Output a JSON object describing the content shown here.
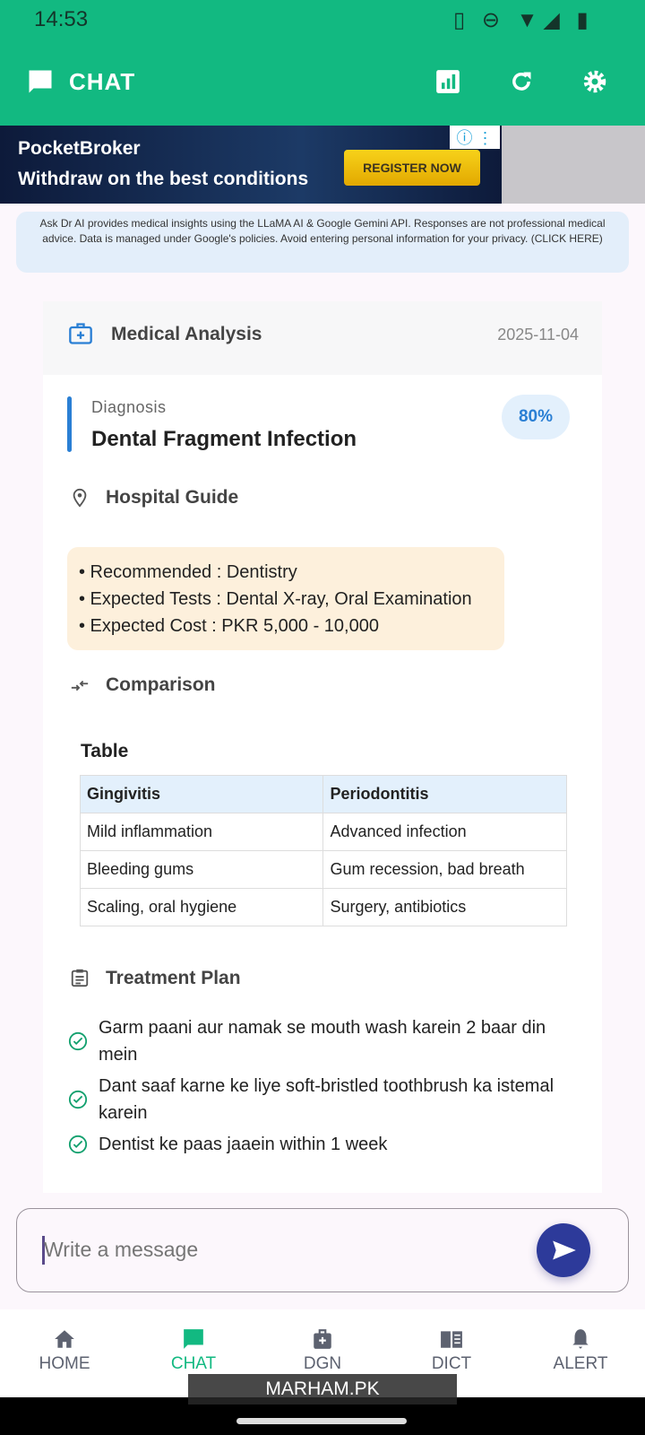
{
  "status_bar": {
    "time": "14:53"
  },
  "app_bar": {
    "title": "CHAT",
    "icons": [
      "chat-icon",
      "chart-icon",
      "refresh-icon",
      "settings-icon"
    ]
  },
  "ad": {
    "brand": "PocketBroker",
    "tagline": "Withdraw on the best conditions",
    "cta": "REGISTER NOW"
  },
  "disclaimer": "Ask Dr AI provides medical insights using the LLaMA AI & Google Gemini API. Responses are not professional medical advice. Data is managed under Google's policies. Avoid entering personal information for your privacy. (CLICK HERE)",
  "analysis": {
    "title": "Medical Analysis",
    "date": "2025-11-04",
    "diagnosis_label": "Diagnosis",
    "diagnosis": "Dental Fragment Infection",
    "confidence": "80%",
    "hospital_title": "Hospital Guide",
    "hospital_items": [
      "• Recommended : Dentistry",
      "• Expected Tests : Dental X-ray, Oral Examination",
      "• Expected Cost : PKR 5,000 - 10,000"
    ],
    "comparison_title": "Comparison",
    "table_title": "Table",
    "table": {
      "headers": [
        "Gingivitis",
        "Periodontitis"
      ],
      "rows": [
        [
          "Mild inflammation",
          "Advanced infection"
        ],
        [
          "Bleeding gums",
          "Gum recession, bad breath"
        ],
        [
          "Scaling, oral hygiene",
          "Surgery, antibiotics"
        ]
      ]
    },
    "treatment_title": "Treatment Plan",
    "treatment": [
      "Garm paani aur namak se mouth wash karein 2 baar din mein",
      "Dant saaf karne ke liye soft-bristled toothbrush ka istemal karein",
      "Dentist ke paas jaaein within 1 week"
    ]
  },
  "composer": {
    "placeholder": "Write a message"
  },
  "nav": [
    {
      "label": "HOME"
    },
    {
      "label": "CHAT",
      "active": true
    },
    {
      "label": "DGN"
    },
    {
      "label": "DICT"
    },
    {
      "label": "ALERT"
    }
  ],
  "watermark": "MARHAM.PK",
  "colors": {
    "primary": "#12b981",
    "accent": "#2d3a9a",
    "link": "#2a7fd4"
  }
}
